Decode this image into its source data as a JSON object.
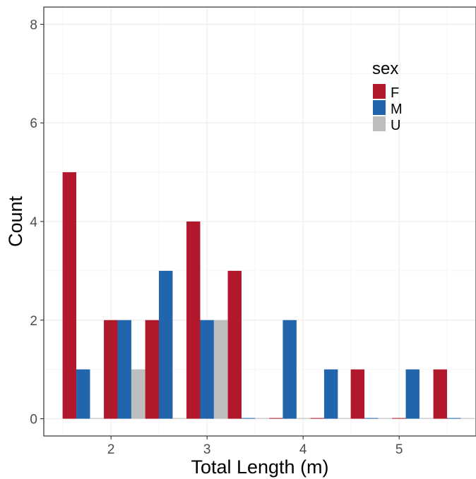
{
  "chart_data": {
    "type": "bar",
    "xlabel": "Total Length (m)",
    "ylabel": "Count",
    "xlim": [
      1.3,
      5.8
    ],
    "ylim": [
      -0.35,
      8.35
    ],
    "x_ticks": [
      2,
      3,
      4,
      5
    ],
    "y_ticks": [
      0,
      2,
      4,
      6,
      8
    ],
    "grid": true,
    "bin_width": 0.4286,
    "x": [
      1.71,
      2.14,
      2.57,
      3.0,
      3.43,
      3.86,
      4.29,
      4.71,
      5.14,
      5.57
    ],
    "series": [
      {
        "name": "F",
        "color": "#b2182b",
        "values": [
          5,
          2,
          2,
          4,
          3,
          0,
          0,
          1,
          0,
          1
        ]
      },
      {
        "name": "M",
        "color": "#2166ac",
        "values": [
          1,
          2,
          3,
          2,
          0,
          2,
          1,
          0,
          1,
          0
        ]
      },
      {
        "name": "U",
        "color": "#bdbdbd",
        "values": [
          0,
          1,
          0,
          2,
          0,
          0,
          0,
          0,
          0,
          0
        ]
      }
    ],
    "legend": {
      "title": "sex",
      "position": "top-right"
    }
  }
}
